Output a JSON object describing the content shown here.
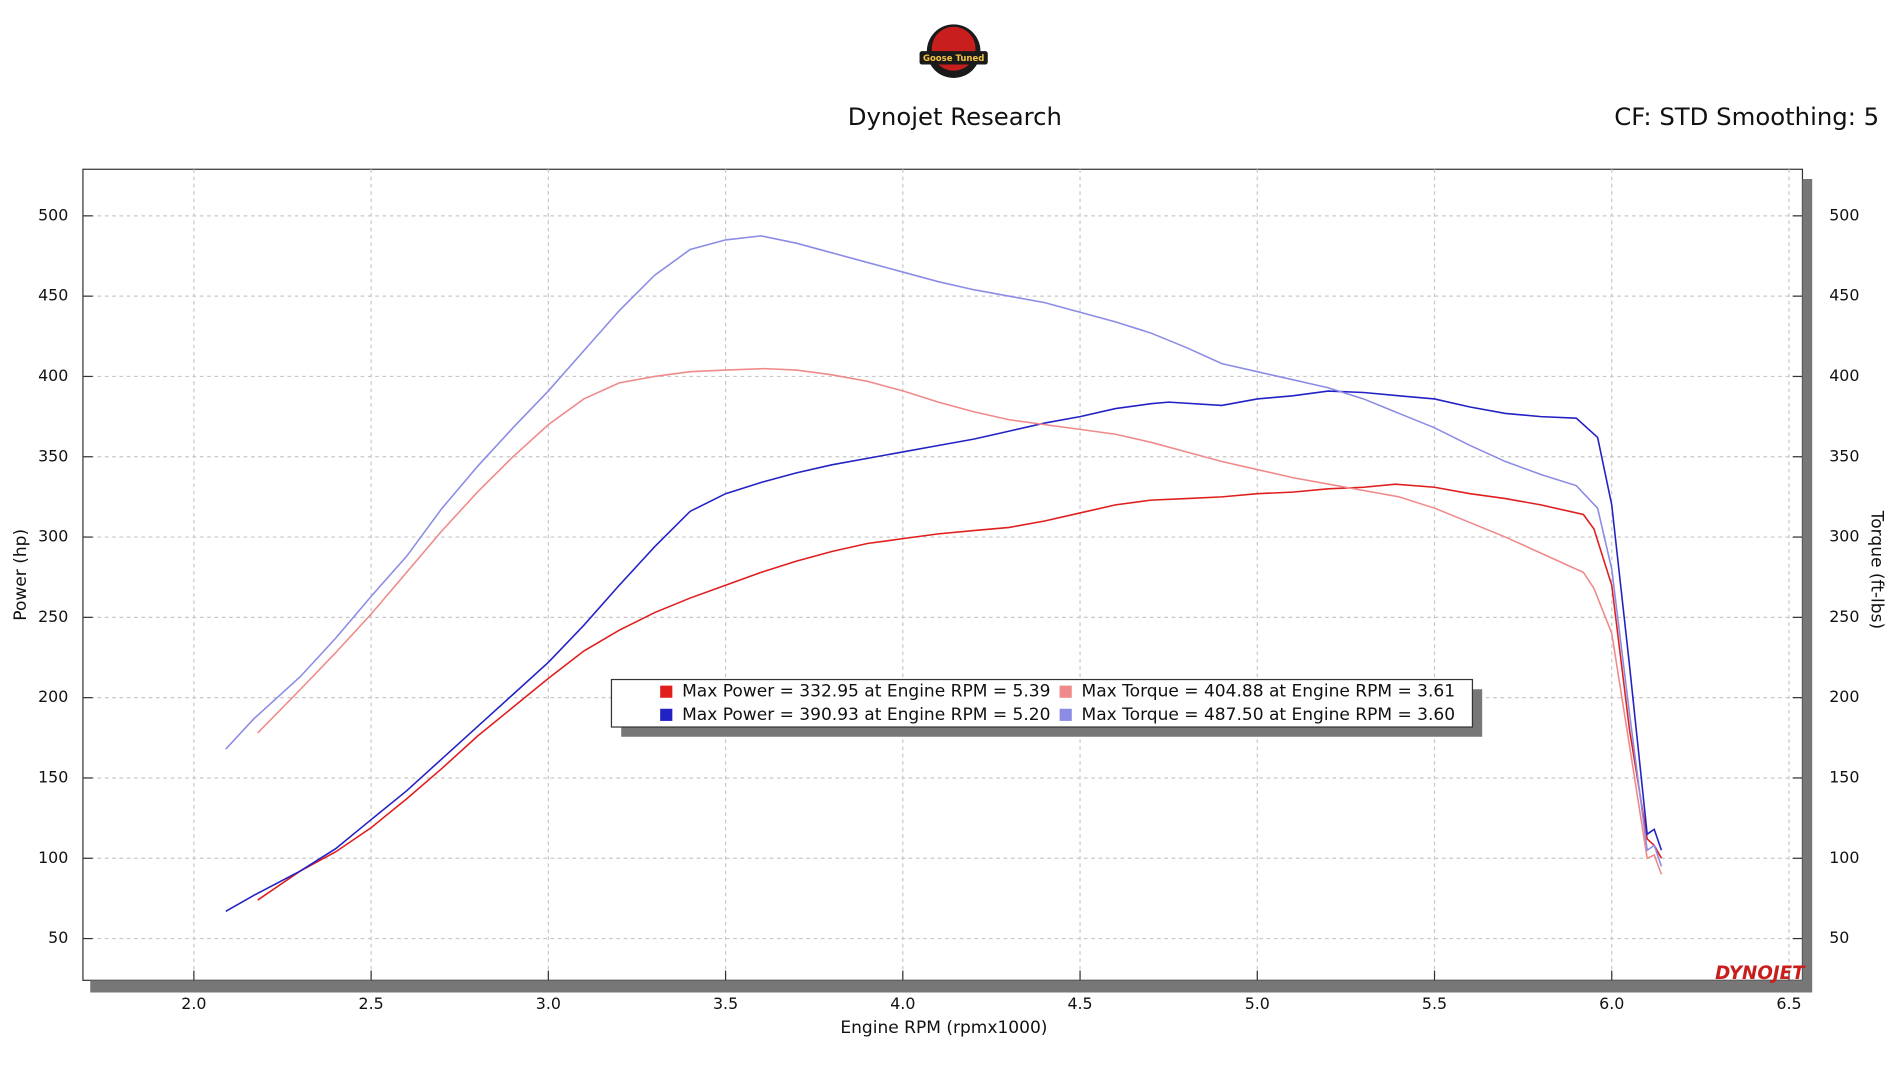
{
  "chart_data": {
    "type": "line",
    "title": "Dynojet Research",
    "subtitle": "CF: STD Smoothing: 5",
    "logo_text": "Goose Tuned",
    "watermark": "DYNOJET",
    "x_label": "Engine RPM (rpmx1000)",
    "y_label": "Power (hp)",
    "y2_label": "Torque (ft-lbs)",
    "xlim": [
      1.687,
      6.538
    ],
    "xticks": [
      {
        "value": 2,
        "label": "2.0"
      },
      2.5,
      {
        "value": 3,
        "label": "3.0"
      },
      3.5,
      {
        "value": 4,
        "label": "4.0"
      },
      4.5,
      {
        "value": 5,
        "label": "5.0"
      },
      5.5,
      {
        "value": 6,
        "label": "6.0"
      },
      6.5
    ],
    "ylim": [
      24,
      529
    ],
    "yticks": [
      50,
      100,
      150,
      200,
      250,
      300,
      350,
      400,
      450,
      500
    ],
    "y2lim": [
      24,
      529
    ],
    "y2ticks": [
      50,
      100,
      150,
      200,
      250,
      300,
      350,
      400,
      450,
      500
    ],
    "grid": true,
    "series": [
      {
        "name": "Max Power = 332.95 at Engine RPM = 5.39",
        "color": "#e01e1e",
        "x": [
          2.18,
          2.3,
          2.4,
          2.5,
          2.6,
          2.7,
          2.8,
          2.9,
          3.0,
          3.1,
          3.2,
          3.3,
          3.4,
          3.5,
          3.6,
          3.7,
          3.8,
          3.9,
          4.0,
          4.1,
          4.2,
          4.3,
          4.4,
          4.5,
          4.6,
          4.7,
          4.8,
          4.9,
          5.0,
          5.1,
          5.2,
          5.3,
          5.39,
          5.5,
          5.6,
          5.7,
          5.8,
          5.92,
          5.95,
          6.0,
          6.05,
          6.1,
          6.12,
          6.14
        ],
        "values": [
          74,
          92,
          104,
          119,
          137,
          156,
          176,
          194,
          212,
          229,
          242,
          253,
          262,
          270,
          278,
          285,
          291,
          296,
          299,
          302,
          304,
          306,
          310,
          315,
          320,
          323,
          324,
          325,
          327,
          328,
          330,
          331,
          332.95,
          331,
          327,
          324,
          320,
          314,
          305,
          270,
          180,
          112,
          108,
          100
        ]
      },
      {
        "name": "Max Power = 390.93 at Engine RPM = 5.20",
        "color": "#2222c4",
        "x": [
          2.09,
          2.17,
          2.3,
          2.4,
          2.5,
          2.6,
          2.7,
          2.8,
          2.9,
          3.0,
          3.1,
          3.2,
          3.3,
          3.4,
          3.5,
          3.6,
          3.7,
          3.8,
          3.9,
          4.0,
          4.1,
          4.2,
          4.3,
          4.4,
          4.5,
          4.6,
          4.7,
          4.75,
          4.9,
          5.0,
          5.1,
          5.2,
          5.3,
          5.4,
          5.5,
          5.6,
          5.7,
          5.8,
          5.9,
          5.96,
          6.0,
          6.05,
          6.1,
          6.12,
          6.14
        ],
        "values": [
          67,
          77,
          92,
          106,
          124,
          142,
          162,
          182,
          202,
          222,
          245,
          270,
          294,
          316,
          327,
          334,
          340,
          345,
          349,
          353,
          357,
          361,
          366,
          371,
          375,
          380,
          383,
          384,
          382,
          386,
          388,
          390.93,
          390,
          388,
          386,
          381,
          377,
          375,
          374,
          362,
          320,
          220,
          115,
          118,
          105
        ]
      },
      {
        "name": "Max Torque = 404.88 at Engine RPM = 3.61",
        "color": "#f08a8a",
        "axis": "y2",
        "x": [
          2.18,
          2.3,
          2.4,
          2.5,
          2.6,
          2.7,
          2.8,
          2.9,
          3.0,
          3.1,
          3.2,
          3.3,
          3.4,
          3.5,
          3.61,
          3.7,
          3.8,
          3.9,
          4.0,
          4.1,
          4.2,
          4.3,
          4.4,
          4.5,
          4.6,
          4.7,
          4.8,
          4.9,
          5.0,
          5.1,
          5.2,
          5.3,
          5.4,
          5.5,
          5.6,
          5.7,
          5.8,
          5.92,
          5.95,
          6.0,
          6.05,
          6.1,
          6.12,
          6.14
        ],
        "values": [
          178,
          205,
          228,
          252,
          278,
          304,
          328,
          350,
          370,
          386,
          396,
          400,
          403,
          404,
          404.88,
          404,
          401,
          397,
          391,
          384,
          378,
          373,
          370,
          367,
          364,
          359,
          353,
          347,
          342,
          337,
          333,
          329,
          325,
          318,
          309,
          300,
          290,
          278,
          268,
          240,
          170,
          100,
          102,
          90
        ]
      },
      {
        "name": "Max Torque = 487.50 at Engine RPM = 3.60",
        "color": "#8c8ce6",
        "axis": "y2",
        "x": [
          2.09,
          2.17,
          2.3,
          2.4,
          2.5,
          2.6,
          2.7,
          2.8,
          2.9,
          3.0,
          3.1,
          3.2,
          3.3,
          3.4,
          3.5,
          3.6,
          3.7,
          3.8,
          3.9,
          4.0,
          4.1,
          4.2,
          4.3,
          4.4,
          4.5,
          4.6,
          4.7,
          4.8,
          4.9,
          5.0,
          5.1,
          5.2,
          5.3,
          5.4,
          5.5,
          5.6,
          5.7,
          5.8,
          5.9,
          5.96,
          6.0,
          6.05,
          6.1,
          6.12,
          6.14
        ],
        "values": [
          168,
          187,
          213,
          237,
          263,
          288,
          318,
          344,
          368,
          391,
          416,
          441,
          463,
          479,
          485,
          487.5,
          483,
          477,
          471,
          465,
          459,
          454,
          450,
          446,
          440,
          434,
          427,
          418,
          408,
          403,
          398,
          393,
          386,
          377,
          368,
          357,
          347,
          339,
          332,
          318,
          280,
          190,
          105,
          108,
          95
        ]
      }
    ]
  }
}
